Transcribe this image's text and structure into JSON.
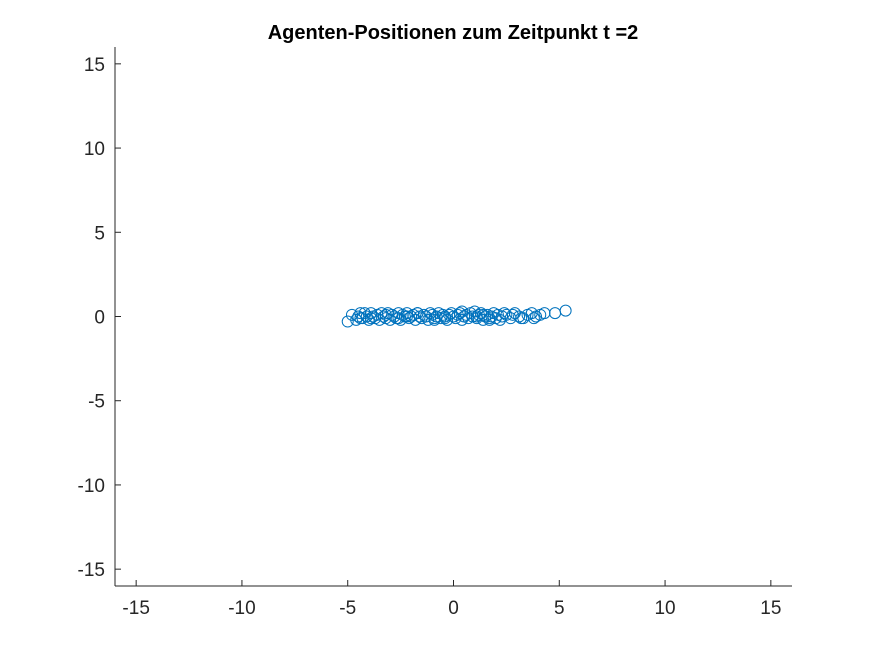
{
  "chart_data": {
    "type": "scatter",
    "title": "Agenten-Positionen zum Zeitpunkt t =2",
    "xlabel": "",
    "ylabel": "",
    "xlim": [
      -16,
      16
    ],
    "ylim": [
      -16,
      16
    ],
    "xticks": [
      -15,
      -10,
      -5,
      0,
      5,
      10,
      15
    ],
    "yticks": [
      -15,
      -10,
      -5,
      0,
      5,
      10,
      15
    ],
    "xtick_labels": [
      "-15",
      "-10",
      "-5",
      "0",
      "5",
      "10",
      "15"
    ],
    "ytick_labels": [
      "-15",
      "-10",
      "-5",
      "0",
      "5",
      "10",
      "15"
    ],
    "grid": false,
    "marker": "circle-open",
    "color": "#0072BD",
    "series": [
      {
        "x": [
          -5.0,
          -4.8,
          -4.6,
          -4.5,
          -4.4,
          -4.3,
          -4.2,
          -4.1,
          -4.0,
          -3.9,
          -3.8,
          -3.7,
          -3.6,
          -3.5,
          -3.4,
          -3.3,
          -3.2,
          -3.1,
          -3.0,
          -2.9,
          -2.8,
          -2.7,
          -2.6,
          -2.5,
          -2.4,
          -2.3,
          -2.2,
          -2.1,
          -2.0,
          -1.9,
          -1.8,
          -1.7,
          -1.6,
          -1.5,
          -1.4,
          -1.3,
          -1.2,
          -1.1,
          -1.0,
          -0.9,
          -0.8,
          -0.7,
          -0.6,
          -0.5,
          -0.4,
          -0.3,
          -0.2,
          -0.1,
          0.0,
          0.1,
          0.2,
          0.3,
          0.4,
          0.5,
          0.6,
          0.7,
          0.8,
          0.9,
          1.0,
          1.1,
          1.2,
          1.3,
          1.4,
          1.5,
          1.6,
          1.7,
          1.8,
          1.9,
          2.0,
          2.1,
          2.2,
          2.3,
          2.5,
          2.7,
          2.9,
          3.1,
          3.3,
          3.5,
          3.7,
          3.9,
          4.1,
          4.3,
          4.8,
          5.3,
          -3.9,
          -3.2,
          -2.6,
          -1.7,
          -0.9,
          0.4,
          1.1,
          1.7,
          2.4,
          3.2,
          -4.4,
          -2.2,
          -0.4,
          1.4,
          2.8,
          3.8
        ],
        "y": [
          -0.3,
          0.1,
          -0.2,
          0.0,
          0.2,
          -0.1,
          0.2,
          0.0,
          -0.2,
          0.2,
          0.0,
          -0.1,
          0.1,
          -0.2,
          0.2,
          0.0,
          -0.1,
          0.2,
          -0.2,
          0.1,
          0.0,
          -0.1,
          0.2,
          -0.2,
          0.1,
          0.0,
          0.2,
          -0.1,
          0.0,
          0.1,
          -0.2,
          0.2,
          0.0,
          -0.1,
          0.1,
          0.0,
          -0.2,
          0.2,
          0.1,
          -0.1,
          0.0,
          0.2,
          -0.1,
          0.1,
          0.0,
          -0.2,
          0.1,
          0.2,
          0.0,
          -0.1,
          0.1,
          0.2,
          -0.2,
          0.0,
          0.1,
          -0.1,
          0.2,
          0.0,
          0.3,
          -0.1,
          0.1,
          0.2,
          -0.2,
          0.0,
          0.1,
          -0.2,
          0.0,
          0.2,
          -0.1,
          0.1,
          -0.2,
          0.0,
          0.1,
          -0.1,
          0.2,
          0.0,
          -0.1,
          0.1,
          0.2,
          0.0,
          0.1,
          0.2,
          0.2,
          0.35,
          -0.1,
          0.1,
          -0.1,
          0.2,
          -0.2,
          0.3,
          0.0,
          -0.1,
          0.2,
          -0.1,
          -0.1,
          0.0,
          -0.1,
          0.1,
          0.1,
          -0.1
        ]
      }
    ]
  }
}
